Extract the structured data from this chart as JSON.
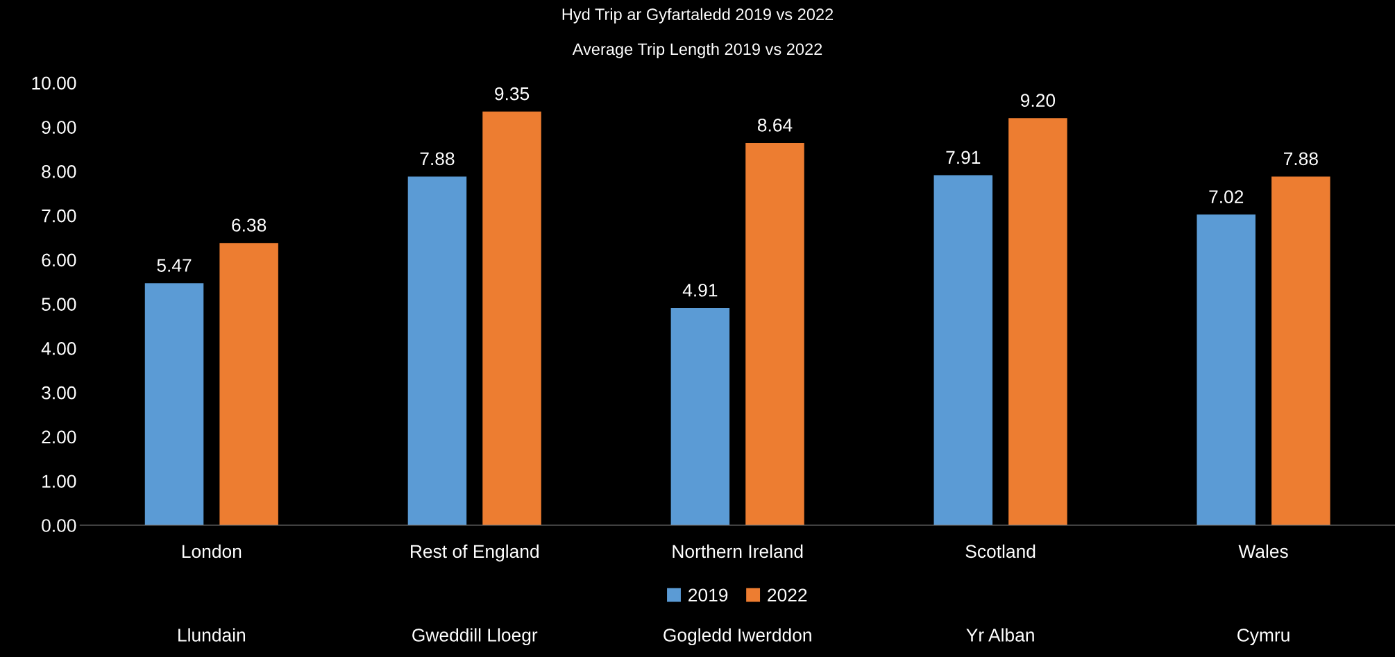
{
  "chart_data": {
    "type": "bar",
    "title": "Hyd Trip ar Gyfartaledd 2019 vs 2022",
    "subtitle": "Average Trip Length 2019 vs 2022",
    "categories": [
      "London",
      "Rest of England",
      "Northern Ireland",
      "Scotland",
      "Wales"
    ],
    "series": [
      {
        "name": "2019",
        "color": "#5b9bd5",
        "values": [
          5.47,
          7.88,
          4.91,
          7.91,
          7.02
        ],
        "value_labels": [
          "5.47",
          "7.88",
          "4.91",
          "7.91",
          "7.02"
        ]
      },
      {
        "name": "2022",
        "color": "#ed7d31",
        "values": [
          6.38,
          9.35,
          8.64,
          9.2,
          7.88
        ],
        "value_labels": [
          "6.38",
          "9.35",
          "8.64",
          "9.20",
          "7.88"
        ]
      }
    ],
    "ylim": [
      0,
      10
    ],
    "yticks": [
      {
        "value": 0,
        "label": "0.00"
      },
      {
        "value": 1,
        "label": "1.00"
      },
      {
        "value": 2,
        "label": "2.00"
      },
      {
        "value": 3,
        "label": "3.00"
      },
      {
        "value": 4,
        "label": "4.00"
      },
      {
        "value": 5,
        "label": "5.00"
      },
      {
        "value": 6,
        "label": "6.00"
      },
      {
        "value": 7,
        "label": "7.00"
      },
      {
        "value": 8,
        "label": "8.00"
      },
      {
        "value": 9,
        "label": "9.00"
      },
      {
        "value": 10,
        "label": "10.00"
      }
    ],
    "legend": "bottom",
    "grid": false,
    "annotations": [
      "Llundain",
      "Gweddill Lloegr",
      "Gogledd Iwerddon",
      "Yr Alban",
      "Cymru"
    ]
  }
}
